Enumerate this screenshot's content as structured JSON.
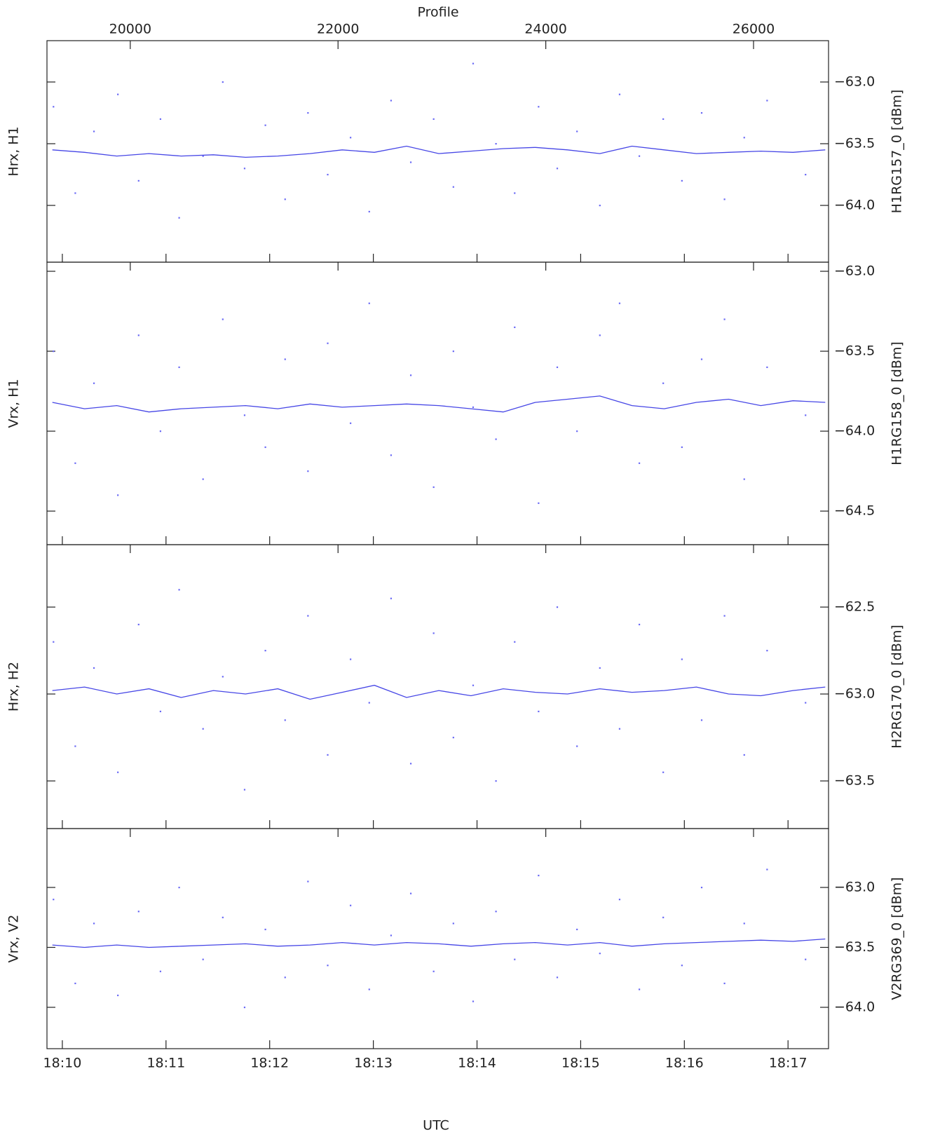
{
  "chart_data": {
    "type": "scatter",
    "x_label_top": "Profile",
    "x_label_bottom": "UTC",
    "xlim": [
      19198,
      26722
    ],
    "xticks": [
      20000,
      22000,
      24000,
      26000
    ],
    "xticks2": [
      {
        "value": 19346,
        "label": "18:10"
      },
      {
        "value": 20344,
        "label": "18:11"
      },
      {
        "value": 21342,
        "label": "18:12"
      },
      {
        "value": 22340,
        "label": "18:13"
      },
      {
        "value": 23338,
        "label": "18:14"
      },
      {
        "value": 24336,
        "label": "18:15"
      },
      {
        "value": 25334,
        "label": "18:16"
      },
      {
        "value": 26332,
        "label": "18:17"
      }
    ],
    "marker_color": "#6a6af5",
    "line_color": "#4646e6",
    "line_x": [
      19250,
      19560,
      19870,
      20180,
      20490,
      20800,
      21110,
      21420,
      21730,
      22040,
      22350,
      22660,
      22970,
      23280,
      23590,
      23900,
      24210,
      24520,
      24830,
      25140,
      25450,
      25760,
      26070,
      26380,
      26690
    ],
    "scatter_x": [
      19260,
      19470,
      19650,
      19880,
      20080,
      20290,
      20470,
      20700,
      20890,
      21100,
      21300,
      21490,
      21710,
      21900,
      22120,
      22300,
      22510,
      22700,
      22920,
      23110,
      23300,
      23520,
      23700,
      23930,
      24110,
      24300,
      24520,
      24710,
      24900,
      25130,
      25310,
      25500,
      25720,
      25910,
      26130,
      26500
    ],
    "panels": [
      {
        "ylabel": "Hrx, H1",
        "y2label": "H1RG157_0 [dBm]",
        "ylim": [
          -64.46,
          -62.665
        ],
        "yticks": [
          {
            "value": -63.0,
            "label": "−63.0"
          },
          {
            "value": -63.5,
            "label": "−63.5"
          },
          {
            "value": -64.0,
            "label": "−64.0"
          }
        ],
        "line_values": [
          -63.55,
          -63.57,
          -63.6,
          -63.58,
          -63.6,
          -63.59,
          -63.61,
          -63.6,
          -63.58,
          -63.55,
          -63.57,
          -63.52,
          -63.58,
          -63.56,
          -63.54,
          -63.53,
          -63.55,
          -63.58,
          -63.52,
          -63.55,
          -63.58,
          -63.57,
          -63.56,
          -63.57,
          -63.55
        ],
        "scatter_values": [
          -63.2,
          -63.9,
          -63.4,
          -63.1,
          -63.8,
          -63.3,
          -64.1,
          -63.6,
          -63.0,
          -63.7,
          -63.35,
          -63.95,
          -63.25,
          -63.75,
          -63.45,
          -64.05,
          -63.15,
          -63.65,
          -63.3,
          -63.85,
          -62.85,
          -63.5,
          -63.9,
          -63.2,
          -63.7,
          -63.4,
          -64.0,
          -63.1,
          -63.6,
          -63.3,
          -63.8,
          -63.25,
          -63.95,
          -63.45,
          -63.15,
          -63.75
        ]
      },
      {
        "ylabel": "Vrx, H1",
        "y2label": "H1RG158_0 [dBm]",
        "ylim": [
          -64.71,
          -62.943
        ],
        "yticks": [
          {
            "value": -63.0,
            "label": "−63.0"
          },
          {
            "value": -63.5,
            "label": "−63.5"
          },
          {
            "value": -64.0,
            "label": "−64.0"
          },
          {
            "value": -64.5,
            "label": "−64.5"
          }
        ],
        "line_values": [
          -63.82,
          -63.86,
          -63.84,
          -63.88,
          -63.86,
          -63.85,
          -63.84,
          -63.86,
          -63.83,
          -63.85,
          -63.84,
          -63.83,
          -63.84,
          -63.86,
          -63.88,
          -63.82,
          -63.8,
          -63.78,
          -63.84,
          -63.86,
          -63.82,
          -63.8,
          -63.84,
          -63.81,
          -63.82
        ],
        "scatter_values": [
          -63.5,
          -64.2,
          -63.7,
          -64.4,
          -63.4,
          -64.0,
          -63.6,
          -64.3,
          -63.3,
          -63.9,
          -64.1,
          -63.55,
          -64.25,
          -63.45,
          -63.95,
          -63.2,
          -64.15,
          -63.65,
          -64.35,
          -63.5,
          -63.85,
          -64.05,
          -63.35,
          -64.45,
          -63.6,
          -64.0,
          -63.4,
          -63.2,
          -64.2,
          -63.7,
          -64.1,
          -63.55,
          -63.3,
          -64.3,
          -63.6,
          -63.9
        ]
      },
      {
        "ylabel": "Hrx, H2",
        "y2label": "H2RG170_0 [dBm]",
        "ylim": [
          -63.774,
          -62.141
        ],
        "yticks": [
          {
            "value": -62.5,
            "label": "−62.5"
          },
          {
            "value": -63.0,
            "label": "−63.0"
          },
          {
            "value": -63.5,
            "label": "−63.5"
          }
        ],
        "line_values": [
          -62.98,
          -62.96,
          -63.0,
          -62.97,
          -63.02,
          -62.98,
          -63.0,
          -62.97,
          -63.03,
          -62.99,
          -62.95,
          -63.02,
          -62.98,
          -63.01,
          -62.97,
          -62.99,
          -63.0,
          -62.97,
          -62.99,
          -62.98,
          -62.96,
          -63.0,
          -63.01,
          -62.98,
          -62.96
        ],
        "scatter_values": [
          -62.7,
          -63.3,
          -62.85,
          -63.45,
          -62.6,
          -63.1,
          -62.4,
          -63.2,
          -62.9,
          -63.55,
          -62.75,
          -63.15,
          -62.55,
          -63.35,
          -62.8,
          -63.05,
          -62.45,
          -63.4,
          -62.65,
          -63.25,
          -62.95,
          -63.5,
          -62.7,
          -63.1,
          -62.5,
          -63.3,
          -62.85,
          -63.2,
          -62.6,
          -63.45,
          -62.8,
          -63.15,
          -62.55,
          -63.35,
          -62.75,
          -63.05
        ]
      },
      {
        "ylabel": "Vrx, V2",
        "y2label": "V2RG369_0 [dBm]",
        "ylim": [
          -64.345,
          -62.509
        ],
        "yticks": [
          {
            "value": -63.0,
            "label": "−63.0"
          },
          {
            "value": -63.5,
            "label": "−63.5"
          },
          {
            "value": -64.0,
            "label": "−64.0"
          }
        ],
        "line_values": [
          -63.48,
          -63.5,
          -63.48,
          -63.5,
          -63.49,
          -63.48,
          -63.47,
          -63.49,
          -63.48,
          -63.46,
          -63.48,
          -63.46,
          -63.47,
          -63.49,
          -63.47,
          -63.46,
          -63.48,
          -63.46,
          -63.49,
          -63.47,
          -63.46,
          -63.45,
          -63.44,
          -63.45,
          -63.43
        ],
        "scatter_values": [
          -63.1,
          -63.8,
          -63.3,
          -63.9,
          -63.2,
          -63.7,
          -63.0,
          -63.6,
          -63.25,
          -64.0,
          -63.35,
          -63.75,
          -62.95,
          -63.65,
          -63.15,
          -63.85,
          -63.4,
          -63.05,
          -63.7,
          -63.3,
          -63.95,
          -63.2,
          -63.6,
          -62.9,
          -63.75,
          -63.35,
          -63.55,
          -63.1,
          -63.85,
          -63.25,
          -63.65,
          -63.0,
          -63.8,
          -63.3,
          -62.85,
          -63.6
        ]
      }
    ]
  }
}
